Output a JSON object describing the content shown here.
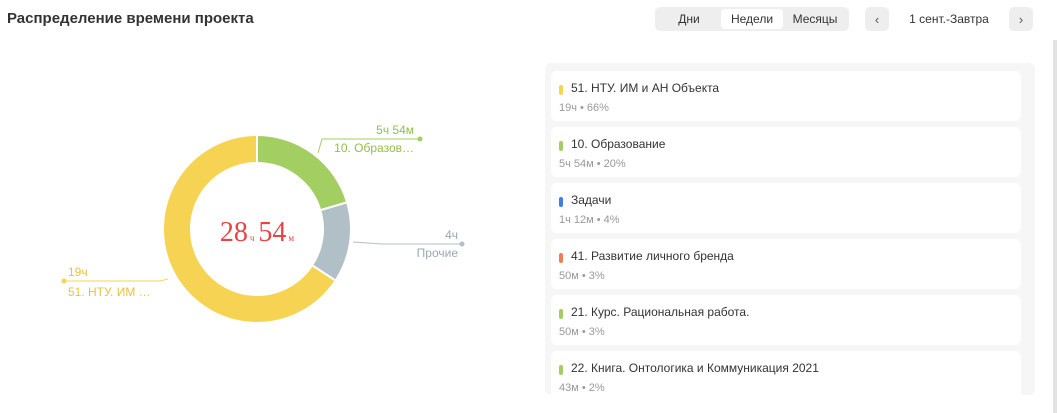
{
  "header": {
    "title": "Распределение времени проекта",
    "tabs": [
      {
        "label": "Дни",
        "active": false
      },
      {
        "label": "Недели",
        "active": true
      },
      {
        "label": "Месяцы",
        "active": false
      }
    ],
    "prev_icon": "chevron-left-icon",
    "next_icon": "chevron-right-icon",
    "prev_glyph": "‹",
    "next_glyph": "›",
    "range": "1 сент.-Завтра"
  },
  "chart_data": {
    "type": "pie",
    "center": {
      "hours": "28",
      "hours_unit": "ч",
      "minutes": "54",
      "minutes_unit": "м"
    },
    "slices": [
      {
        "label": "10. Образов…",
        "value_text": "5ч 54м",
        "minutes": 354,
        "color": "#a3cf62"
      },
      {
        "label": "Прочие",
        "value_text": "4ч",
        "minutes": 240,
        "color": "#b1bfc6"
      },
      {
        "label": "51. НТУ. ИМ …",
        "value_text": "19ч",
        "minutes": 1140,
        "color": "#f7d354"
      }
    ]
  },
  "legend": {
    "items": [
      {
        "name": "51. НТУ. ИМ и АН Объекта",
        "sub": "19ч • 66%",
        "color": "#f7d354"
      },
      {
        "name": "10. Образование",
        "sub": "5ч 54м • 20%",
        "color": "#a3cf62"
      },
      {
        "name": "Задачи",
        "sub": "1ч 12м • 4%",
        "color": "#3f7ee8"
      },
      {
        "name": "41. Развитие личного бренда",
        "sub": "50м • 3%",
        "color": "#ef7e56"
      },
      {
        "name": "21. Курс. Рациональная работа.",
        "sub": "50м • 3%",
        "color": "#a3cf62"
      },
      {
        "name": "22. Книга. Онтологика и Коммуникация 2021",
        "sub": "43м • 2%",
        "color": "#a3cf62"
      }
    ]
  }
}
